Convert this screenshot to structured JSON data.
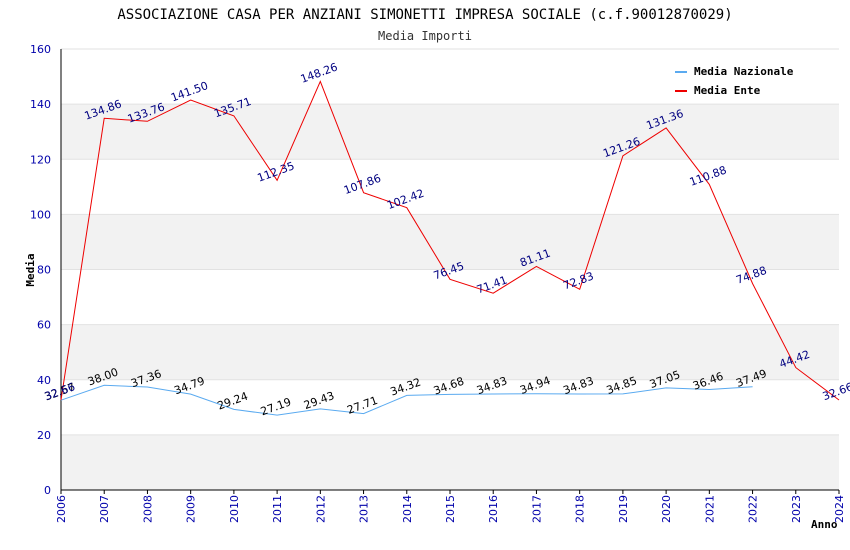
{
  "chart_data": {
    "type": "line",
    "title": "ASSOCIAZIONE CASA PER ANZIANI SIMONETTI IMPRESA SOCIALE (c.f.90012870029)",
    "subtitle": "Media Importi",
    "xlabel": "Anno",
    "ylabel": "Media",
    "ylim": [
      0,
      160
    ],
    "yticks": [
      "0",
      "20",
      "40",
      "60",
      "80",
      "100",
      "120",
      "140",
      "160"
    ],
    "categories": [
      "2006",
      "2007",
      "2008",
      "2009",
      "2010",
      "2011",
      "2012",
      "2013",
      "2014",
      "2015",
      "2016",
      "2017",
      "2018",
      "2019",
      "2020",
      "2021",
      "2022",
      "2023",
      "2024"
    ],
    "legend_position": "top-right",
    "series": [
      {
        "name": "Media Nazionale",
        "color": "#5aaaf0",
        "label_color": "#000000",
        "values": [
          32.57,
          38.0,
          37.36,
          34.79,
          29.24,
          27.19,
          29.43,
          27.71,
          34.32,
          34.68,
          34.83,
          34.94,
          34.83,
          34.85,
          37.05,
          36.46,
          37.49,
          null,
          null
        ],
        "labels": [
          "32.57",
          "38.00",
          "37.36",
          "34.79",
          "29.24",
          "27.19",
          "29.43",
          "27.71",
          "34.32",
          "34.68",
          "34.83",
          "34.94",
          "34.83",
          "34.85",
          "37.05",
          "36.46",
          "37.49",
          null,
          null
        ]
      },
      {
        "name": "Media Ente",
        "color": "#ee0000",
        "label_color": "#000080",
        "values": [
          32.66,
          134.86,
          133.76,
          141.5,
          135.71,
          112.35,
          148.26,
          107.86,
          102.42,
          76.45,
          71.41,
          81.11,
          72.83,
          121.26,
          131.36,
          110.88,
          74.88,
          44.42,
          32.66
        ],
        "labels": [
          "32.66",
          "134.86",
          "133.76",
          "141.50",
          "135.71",
          "112.35",
          "148.26",
          "107.86",
          "102.42",
          "76.45",
          "71.41",
          "81.11",
          "72.83",
          "121.26",
          "131.36",
          "110.88",
          "74.88",
          "44.42",
          "32.66"
        ]
      }
    ]
  }
}
